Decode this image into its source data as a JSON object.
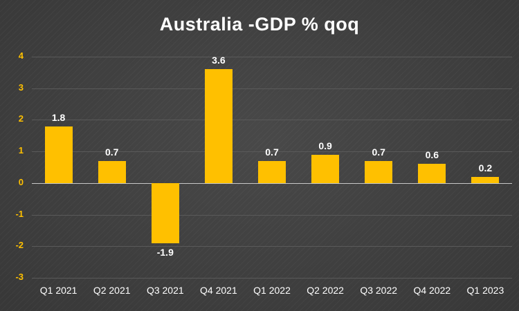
{
  "chart_data": {
    "type": "bar",
    "title": "Australia -GDP % qoq",
    "categories": [
      "Q1 2021",
      "Q2 2021",
      "Q3 2021",
      "Q4 2021",
      "Q1 2022",
      "Q2 2022",
      "Q3 2022",
      "Q4 2022",
      "Q1 2023"
    ],
    "values": [
      1.8,
      0.7,
      -1.9,
      3.6,
      0.7,
      0.9,
      0.7,
      0.6,
      0.2
    ],
    "value_labels": [
      "1.8",
      "0.7",
      "-1.9",
      "3.6",
      "0.7",
      "0.9",
      "0.7",
      "0.6",
      "0.2"
    ],
    "xlabel": "",
    "ylabel": "",
    "ylim": [
      -3,
      4
    ],
    "yticks": [
      -3,
      -2,
      -1,
      0,
      1,
      2,
      3,
      4
    ],
    "grid": true,
    "legend": "none",
    "colors": {
      "bar": "#FFC000",
      "background": "#3F3F3F",
      "gridline": "#5A5A5A",
      "zero_line": "#C8C8C8",
      "y_tick_label": "#FFC000",
      "x_tick_label": "#FFFFFF",
      "data_label": "#FFFFFF",
      "title": "#FFFFFF"
    }
  }
}
